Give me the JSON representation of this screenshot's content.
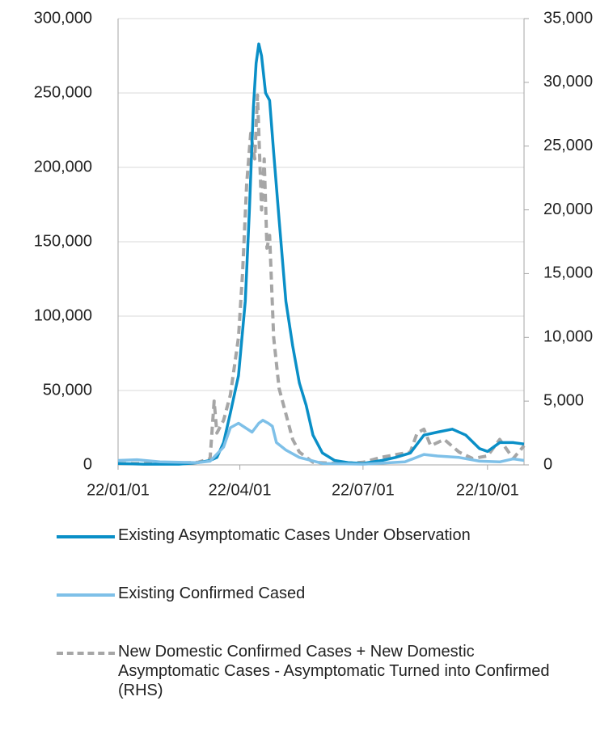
{
  "chart_data": {
    "type": "line",
    "xlim": [
      "22/01/01",
      "22/10/28"
    ],
    "xticks": [
      "22/01/01",
      "22/04/01",
      "22/07/01",
      "22/10/01"
    ],
    "ylim": [
      0,
      300000
    ],
    "yticks": [
      0,
      {
        "value": 50000,
        "label": "50,000"
      },
      {
        "value": 100000,
        "label": "100,000"
      },
      {
        "value": 150000,
        "label": "150,000"
      },
      {
        "value": 200000,
        "label": "200,000"
      },
      {
        "value": 250000,
        "label": "250,000"
      },
      {
        "value": 300000,
        "label": "300,000"
      }
    ],
    "y2lim": [
      0,
      35000
    ],
    "y2ticks": [
      0,
      {
        "value": 5000,
        "label": "5,000"
      },
      {
        "value": 10000,
        "label": "10,000"
      },
      {
        "value": 15000,
        "label": "15,000"
      },
      {
        "value": 20000,
        "label": "20,000"
      },
      {
        "value": 25000,
        "label": "25,000"
      },
      {
        "value": 30000,
        "label": "30,000"
      },
      {
        "value": 35000,
        "label": "35,000"
      }
    ],
    "grid": true,
    "series": [
      {
        "name": "Existing Asymptomatic Cases Under Observation",
        "color": "#0a8fc7",
        "axis": "y",
        "dashed": false,
        "x": [
          "22/01/01",
          "22/01/20",
          "22/02/15",
          "22/03/01",
          "22/03/10",
          "22/03/15",
          "22/03/20",
          "22/03/25",
          "22/03/31",
          "22/04/05",
          "22/04/08",
          "22/04/11",
          "22/04/13",
          "22/04/15",
          "22/04/17",
          "22/04/20",
          "22/04/23",
          "22/04/26",
          "22/04/30",
          "22/05/05",
          "22/05/10",
          "22/05/15",
          "22/05/20",
          "22/05/25",
          "22/06/01",
          "22/06/10",
          "22/06/20",
          "22/07/01",
          "22/07/15",
          "22/07/25",
          "22/08/05",
          "22/08/15",
          "22/08/25",
          "22/09/05",
          "22/09/15",
          "22/09/25",
          "22/10/01",
          "22/10/10",
          "22/10/20",
          "22/10/28"
        ],
        "values": [
          1000,
          500,
          500,
          1500,
          3000,
          5000,
          15000,
          35000,
          60000,
          110000,
          170000,
          240000,
          270000,
          283000,
          275000,
          250000,
          245000,
          210000,
          165000,
          110000,
          80000,
          55000,
          40000,
          20000,
          8000,
          3000,
          1500,
          1000,
          3000,
          5000,
          8000,
          20000,
          22000,
          24000,
          20000,
          11000,
          9000,
          15000,
          15000,
          14000
        ]
      },
      {
        "name": "Existing Confirmed Cased",
        "color": "#7ec0e8",
        "axis": "y",
        "dashed": false,
        "x": [
          "22/01/01",
          "22/01/15",
          "22/02/01",
          "22/03/01",
          "22/03/10",
          "22/03/20",
          "22/03/25",
          "22/03/31",
          "22/04/05",
          "22/04/10",
          "22/04/15",
          "22/04/18",
          "22/04/22",
          "22/04/25",
          "22/04/28",
          "22/05/05",
          "22/05/15",
          "22/06/01",
          "22/07/01",
          "22/08/01",
          "22/08/15",
          "22/08/25",
          "22/09/10",
          "22/09/25",
          "22/10/10",
          "22/10/20",
          "22/10/28"
        ],
        "values": [
          3000,
          3500,
          2000,
          1500,
          2500,
          12000,
          25000,
          28000,
          25000,
          22000,
          28000,
          30000,
          28000,
          26000,
          15000,
          10000,
          5000,
          1000,
          500,
          2000,
          7000,
          6000,
          5000,
          2500,
          2000,
          4000,
          3000
        ]
      },
      {
        "name": "New Domestic Confirmed Cases + New Domestic Asymptomatic Cases - Asymptomatic Turned into Confirmed (RHS)",
        "color": "#a6a6a6",
        "axis": "y2",
        "dashed": true,
        "x": [
          "22/01/01",
          "22/02/01",
          "22/03/01",
          "22/03/10",
          "22/03/13",
          "22/03/15",
          "22/03/20",
          "22/03/25",
          "22/03/31",
          "22/04/03",
          "22/04/06",
          "22/04/09",
          "22/04/12",
          "22/04/14",
          "22/04/17",
          "22/04/19",
          "22/04/21",
          "22/04/23",
          "22/04/26",
          "22/04/30",
          "22/05/05",
          "22/05/10",
          "22/05/15",
          "22/05/25",
          "22/06/15",
          "22/07/01",
          "22/07/15",
          "22/07/25",
          "22/08/05",
          "22/08/10",
          "22/08/15",
          "22/08/20",
          "22/08/30",
          "22/09/10",
          "22/09/20",
          "22/10/01",
          "22/10/10",
          "22/10/20",
          "22/10/28"
        ],
        "values": [
          100,
          100,
          200,
          500,
          5000,
          2500,
          3500,
          5500,
          10000,
          15000,
          22000,
          26000,
          24000,
          29000,
          20000,
          24000,
          17000,
          18000,
          10000,
          6000,
          4000,
          2000,
          1000,
          200,
          100,
          200,
          600,
          800,
          1000,
          2500,
          2800,
          1500,
          2000,
          1000,
          500,
          700,
          2000,
          500,
          1500
        ]
      }
    ]
  }
}
